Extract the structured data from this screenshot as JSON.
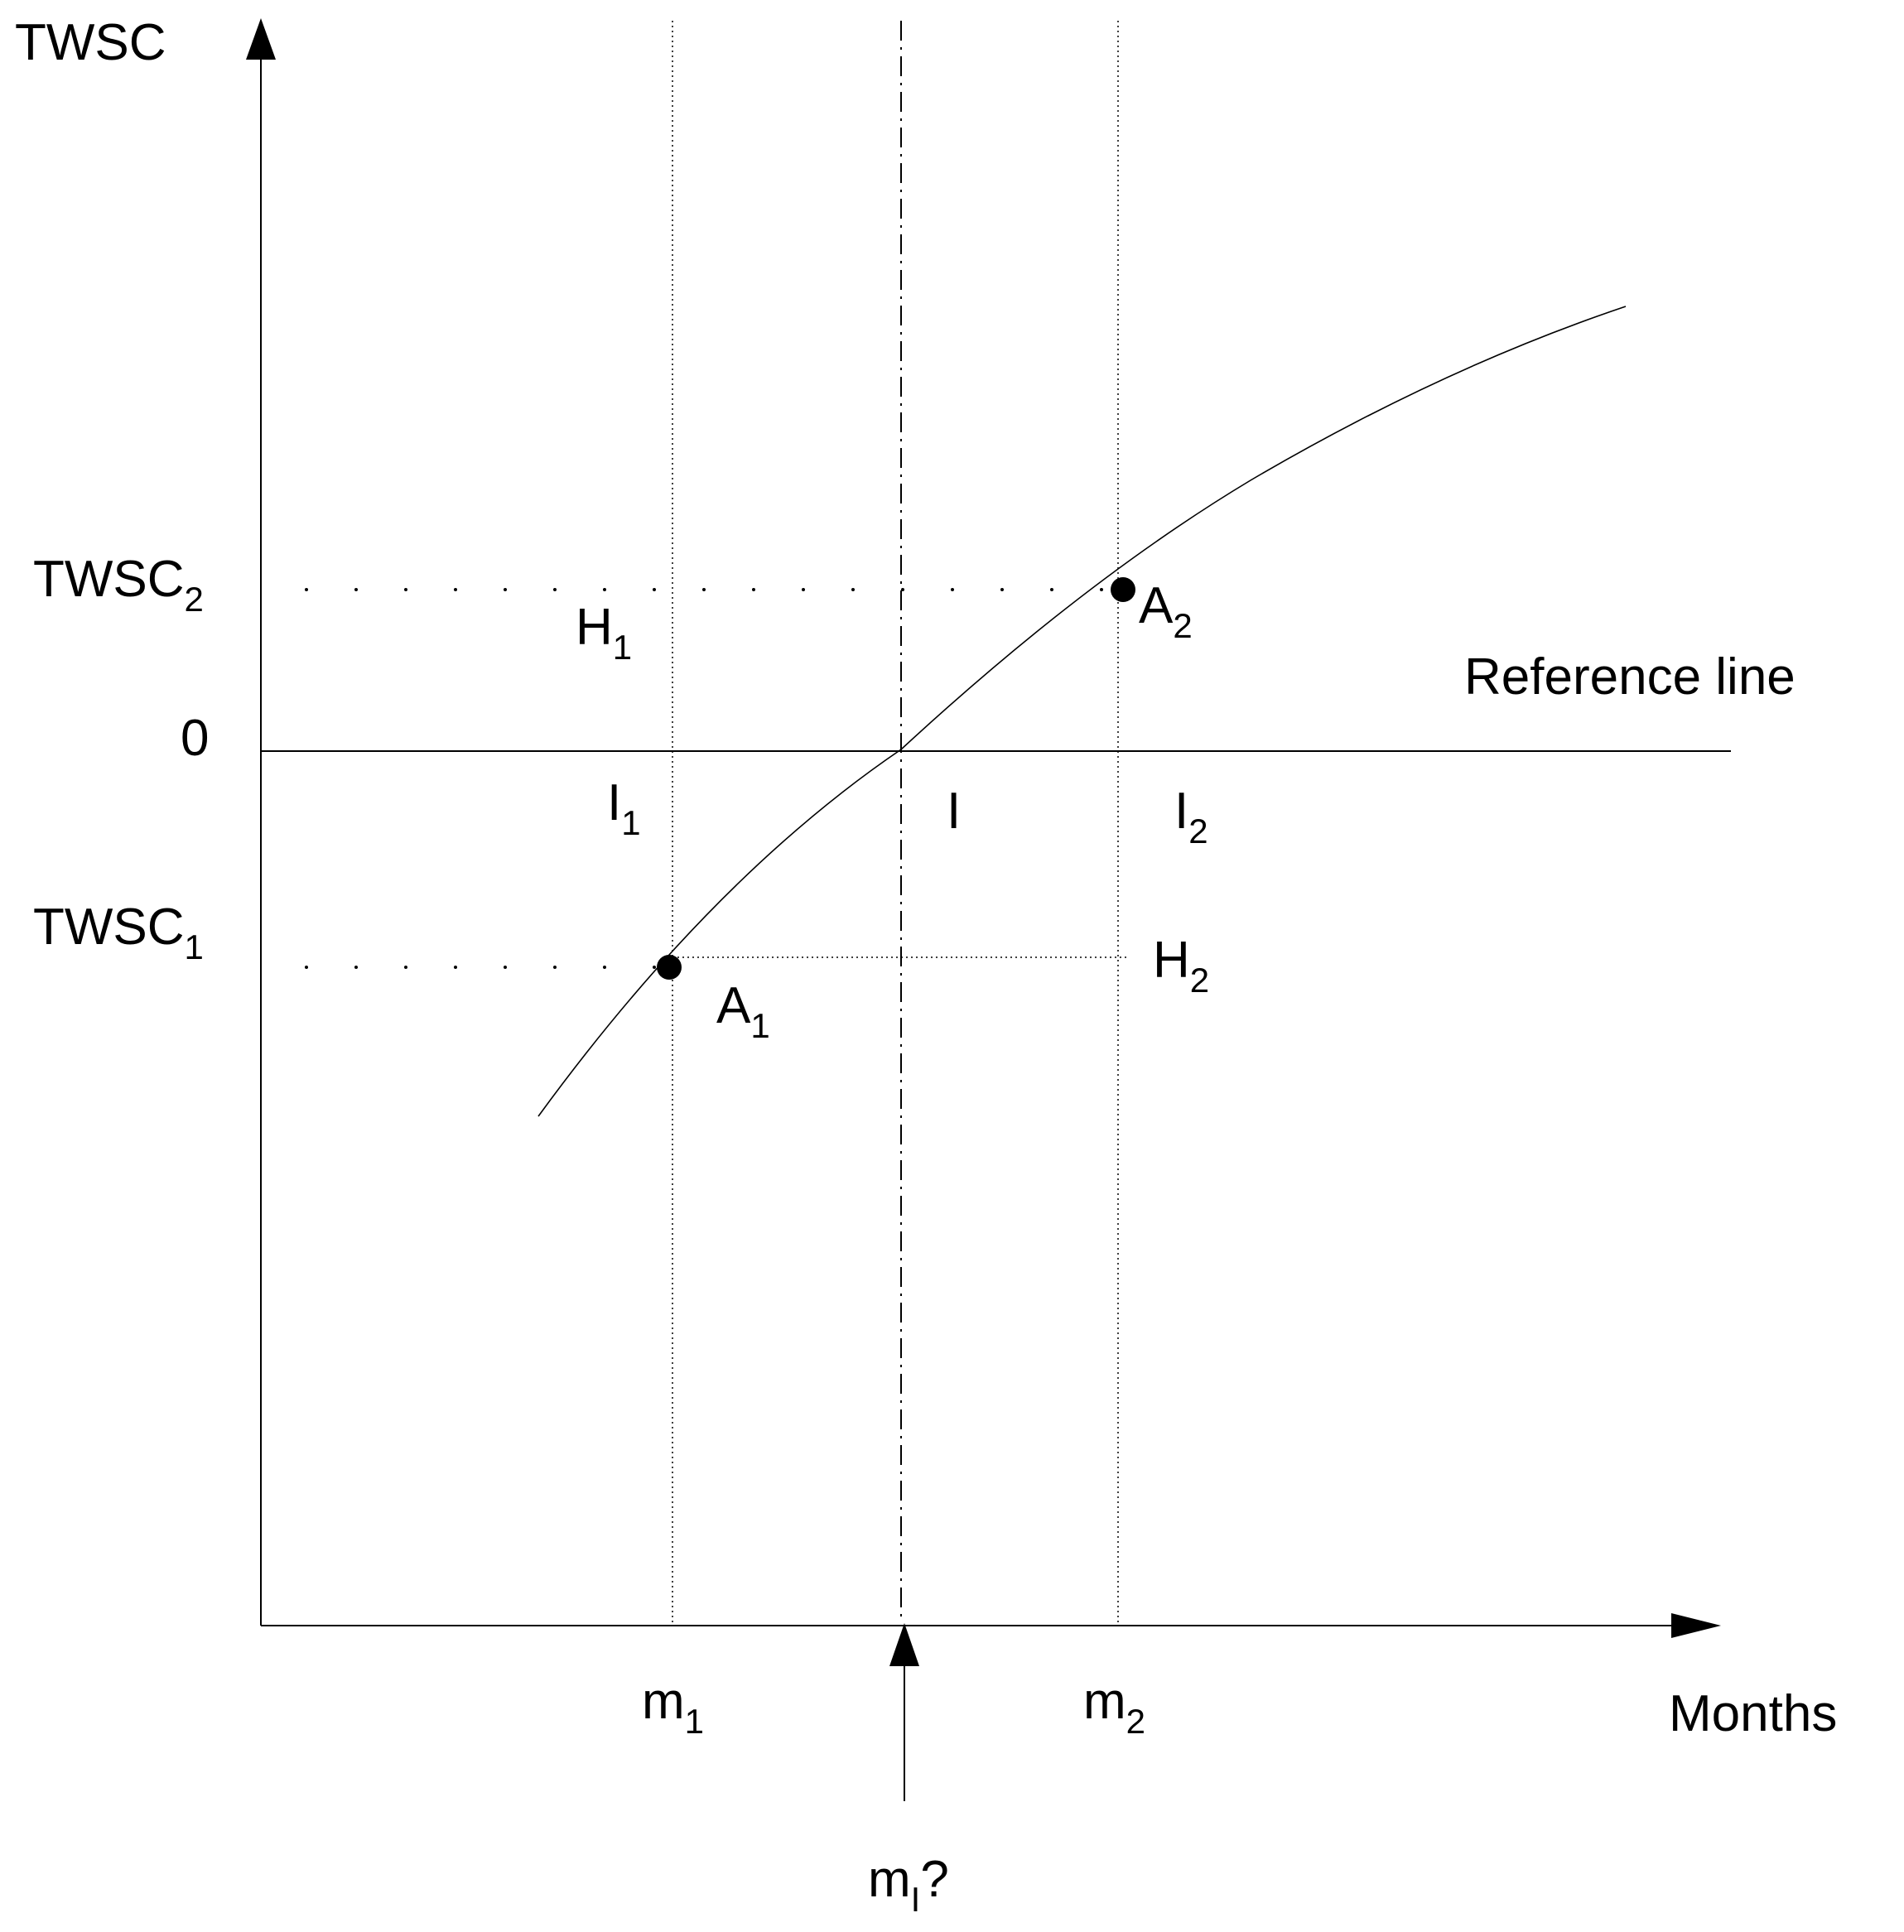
{
  "diagram": {
    "y_axis_label": "TWSC",
    "x_axis_label": "Months",
    "zero_label": "0",
    "reference_line_label": "Reference line",
    "twsc2": {
      "main": "TWSC",
      "sub": "2"
    },
    "twsc1": {
      "main": "TWSC",
      "sub": "1"
    },
    "h1": {
      "main": "H",
      "sub": "1"
    },
    "h2": {
      "main": "H",
      "sub": "2"
    },
    "a1": {
      "main": "A",
      "sub": "1"
    },
    "a2": {
      "main": "A",
      "sub": "2"
    },
    "i1": {
      "main": "I",
      "sub": "1"
    },
    "i": {
      "main": "I"
    },
    "i2": {
      "main": "I",
      "sub": "2"
    },
    "m1": {
      "main": "m",
      "sub": "1"
    },
    "m2": {
      "main": "m",
      "sub": "2"
    },
    "mi": {
      "main": "m",
      "sub": "I",
      "suffix": "?"
    }
  }
}
